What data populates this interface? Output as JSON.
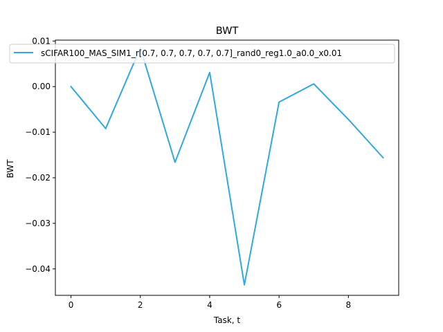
{
  "chart_data": {
    "type": "line",
    "title": "BWT",
    "xlabel": "Task, t",
    "ylabel": "BWT",
    "xlim": [
      -0.45,
      9.45
    ],
    "ylim": [
      -0.0458,
      0.0102
    ],
    "xticks": [
      0,
      2,
      4,
      6,
      8
    ],
    "xtick_labels": [
      "0",
      "2",
      "4",
      "6",
      "8"
    ],
    "yticks": [
      0.01,
      0.0,
      -0.01,
      -0.02,
      -0.03,
      -0.04
    ],
    "ytick_labels": [
      "0.01",
      "0.00",
      "−0.01",
      "−0.02",
      "−0.03",
      "−0.04"
    ],
    "grid": false,
    "legend_position": "top",
    "series": [
      {
        "name": "sCIFAR100_MAS_SIM1_r[0.7, 0.7, 0.7, 0.7, 0.7]_rand0_reg1.0_a0.0_x0.01",
        "color": "#2ea8e0",
        "x": [
          0,
          1,
          2,
          3,
          4,
          5,
          6,
          7,
          8,
          9
        ],
        "y": [
          0.0,
          -0.0092,
          0.0085,
          -0.0166,
          0.0031,
          -0.0435,
          -0.0034,
          0.0006,
          -0.0072,
          -0.0156
        ]
      }
    ]
  }
}
